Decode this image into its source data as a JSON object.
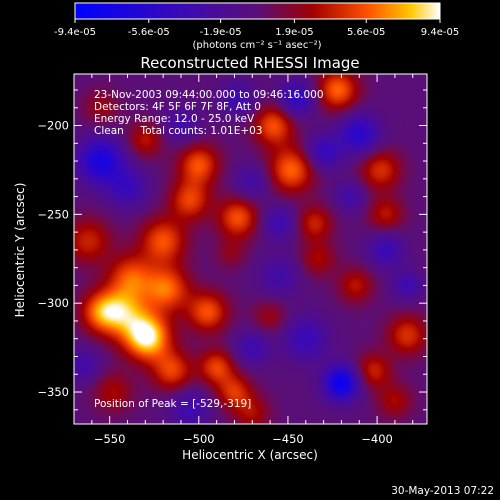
{
  "chart_data": {
    "type": "heatmap",
    "title": "Reconstructed RHESSI Image",
    "xlabel": "Heliocentric X (arcsec)",
    "ylabel": "Heliocentric Y (arcsec)",
    "xlim": [
      -570,
      -372
    ],
    "ylim": [
      -368,
      -171
    ],
    "x_ticks": [
      -550,
      -500,
      -450,
      -400
    ],
    "y_ticks": [
      -200,
      -250,
      -300,
      -350
    ],
    "colorbar": {
      "range": [
        -9.4e-05,
        9.4e-05
      ],
      "tick_labels": [
        "-9.4e-05",
        "-5.6e-05",
        "-1.9e-05",
        "1.9e-05",
        "5.6e-05",
        "9.4e-05"
      ],
      "units": "(photons cm⁻² s⁻¹ asec⁻²)"
    },
    "annotations": [
      "23-Nov-2003 09:44:00.000 to 09:46:16.000",
      "Detectors: 4F 5F 6F 7F 8F, Att 0",
      "Energy Range: 12.0 - 25.0 keV",
      "Clean     Total counts: 1.01E+03"
    ],
    "peak_label": "Position of Peak = [-529,-319]",
    "peak": [
      -529,
      -319
    ],
    "blobs": [
      {
        "x": -529,
        "y": -319,
        "amp": 9.4e-05,
        "r": 9
      },
      {
        "x": -543,
        "y": -305,
        "amp": 6.5e-05,
        "r": 10
      },
      {
        "x": -518,
        "y": -292,
        "amp": 6e-05,
        "r": 9
      },
      {
        "x": -538,
        "y": -285,
        "amp": 5e-05,
        "r": 9
      },
      {
        "x": -555,
        "y": -305,
        "amp": 5e-05,
        "r": 8
      },
      {
        "x": -520,
        "y": -265,
        "amp": 5.5e-05,
        "r": 9
      },
      {
        "x": -495,
        "y": -305,
        "amp": 5.5e-05,
        "r": 8
      },
      {
        "x": -515,
        "y": -338,
        "amp": 5e-05,
        "r": 8
      },
      {
        "x": -490,
        "y": -336,
        "amp": 5e-05,
        "r": 7
      },
      {
        "x": -480,
        "y": -350,
        "amp": 4.5e-05,
        "r": 7
      },
      {
        "x": -562,
        "y": -265,
        "amp": 4e-05,
        "r": 9
      },
      {
        "x": -548,
        "y": -350,
        "amp": 3e-05,
        "r": 8
      },
      {
        "x": -505,
        "y": -242,
        "amp": 5e-05,
        "r": 8
      },
      {
        "x": -500,
        "y": -222,
        "amp": 5.5e-05,
        "r": 8
      },
      {
        "x": -478,
        "y": -252,
        "amp": 5.5e-05,
        "r": 8
      },
      {
        "x": -448,
        "y": -225,
        "amp": 6e-05,
        "r": 9
      },
      {
        "x": -458,
        "y": -200,
        "amp": 5.5e-05,
        "r": 8
      },
      {
        "x": -422,
        "y": -180,
        "amp": 6e-05,
        "r": 8
      },
      {
        "x": -398,
        "y": -225,
        "amp": 4.5e-05,
        "r": 8
      },
      {
        "x": -395,
        "y": -250,
        "amp": 3.5e-05,
        "r": 7
      },
      {
        "x": -435,
        "y": -255,
        "amp": 4e-05,
        "r": 7
      },
      {
        "x": -433,
        "y": -275,
        "amp": 3e-05,
        "r": 7
      },
      {
        "x": -412,
        "y": -290,
        "amp": 3.5e-05,
        "r": 7
      },
      {
        "x": -383,
        "y": -318,
        "amp": 4.5e-05,
        "r": 8
      },
      {
        "x": -402,
        "y": -338,
        "amp": 4e-05,
        "r": 7
      },
      {
        "x": -390,
        "y": -355,
        "amp": 3e-05,
        "r": 7
      },
      {
        "x": -470,
        "y": -362,
        "amp": 3e-05,
        "r": 7
      },
      {
        "x": -555,
        "y": -190,
        "amp": 2.5e-05,
        "r": 7
      },
      {
        "x": -530,
        "y": -208,
        "amp": 3.5e-05,
        "r": 7
      },
      {
        "x": -460,
        "y": -308,
        "amp": 2.5e-05,
        "r": 7
      },
      {
        "x": -482,
        "y": -272,
        "amp": 2e-05,
        "r": 6
      },
      {
        "x": -555,
        "y": -220,
        "amp": -7e-05,
        "r": 9
      },
      {
        "x": -540,
        "y": -235,
        "amp": -4e-05,
        "r": 8
      },
      {
        "x": -420,
        "y": -345,
        "amp": -8.5e-05,
        "r": 7
      },
      {
        "x": -410,
        "y": -205,
        "amp": -5.5e-05,
        "r": 8
      },
      {
        "x": -430,
        "y": -215,
        "amp": -4.5e-05,
        "r": 7
      },
      {
        "x": -445,
        "y": -185,
        "amp": -5e-05,
        "r": 7
      },
      {
        "x": -478,
        "y": -185,
        "amp": -3.5e-05,
        "r": 7
      },
      {
        "x": -470,
        "y": -232,
        "amp": -3e-05,
        "r": 7
      },
      {
        "x": -455,
        "y": -255,
        "amp": -3.5e-05,
        "r": 7
      },
      {
        "x": -440,
        "y": -320,
        "amp": -4e-05,
        "r": 9
      },
      {
        "x": -455,
        "y": -285,
        "amp": -3e-05,
        "r": 8
      },
      {
        "x": -470,
        "y": -325,
        "amp": -3.5e-05,
        "r": 7
      },
      {
        "x": -395,
        "y": -270,
        "amp": -4e-05,
        "r": 7
      },
      {
        "x": -383,
        "y": -290,
        "amp": -3.5e-05,
        "r": 6
      },
      {
        "x": -505,
        "y": -360,
        "amp": -3.5e-05,
        "r": 8
      },
      {
        "x": -510,
        "y": -200,
        "amp": -3e-05,
        "r": 7
      },
      {
        "x": -565,
        "y": -335,
        "amp": -3e-05,
        "r": 7
      },
      {
        "x": -415,
        "y": -240,
        "amp": -3e-05,
        "r": 6
      }
    ]
  },
  "footer": {
    "timestamp": "30-May-2013 07:22"
  }
}
